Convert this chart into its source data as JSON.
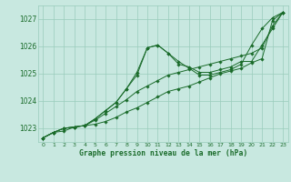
{
  "title": "Graphe pression niveau de la mer (hPa)",
  "background_color": "#c8e8e0",
  "plot_bg_color": "#c8e8e0",
  "grid_color": "#99ccbb",
  "line_color": "#1a6b2a",
  "text_color": "#1a6b2a",
  "xlim": [
    -0.5,
    23.5
  ],
  "ylim": [
    1022.5,
    1027.5
  ],
  "yticks": [
    1023,
    1024,
    1025,
    1026,
    1027
  ],
  "xticks": [
    0,
    1,
    2,
    3,
    4,
    5,
    6,
    7,
    8,
    9,
    10,
    11,
    12,
    13,
    14,
    15,
    16,
    17,
    18,
    19,
    20,
    21,
    22,
    23
  ],
  "series": [
    [
      1022.65,
      1022.85,
      1022.9,
      1023.05,
      1023.1,
      1023.15,
      1023.25,
      1023.4,
      1023.6,
      1023.75,
      1023.95,
      1024.15,
      1024.35,
      1024.45,
      1024.55,
      1024.7,
      1024.85,
      1025.0,
      1025.1,
      1025.2,
      1025.4,
      1025.55,
      1026.95,
      1027.25
    ],
    [
      1022.65,
      1022.85,
      1023.0,
      1023.05,
      1023.1,
      1023.35,
      1023.65,
      1023.95,
      1024.45,
      1024.95,
      1025.95,
      1026.05,
      1025.75,
      1025.45,
      1025.2,
      1024.95,
      1024.95,
      1025.05,
      1025.15,
      1025.35,
      1026.05,
      1026.65,
      1027.05,
      1027.25
    ],
    [
      1022.65,
      1022.85,
      1023.0,
      1023.05,
      1023.1,
      1023.35,
      1023.65,
      1023.95,
      1024.45,
      1025.05,
      1025.95,
      1026.05,
      1025.75,
      1025.35,
      1025.25,
      1025.05,
      1025.05,
      1025.15,
      1025.25,
      1025.45,
      1025.45,
      1026.05,
      1026.65,
      1027.25
    ],
    [
      1022.65,
      1022.85,
      1023.0,
      1023.05,
      1023.1,
      1023.3,
      1023.55,
      1023.8,
      1024.05,
      1024.35,
      1024.55,
      1024.75,
      1024.95,
      1025.05,
      1025.15,
      1025.25,
      1025.35,
      1025.45,
      1025.55,
      1025.65,
      1025.75,
      1025.95,
      1026.75,
      1027.25
    ]
  ]
}
